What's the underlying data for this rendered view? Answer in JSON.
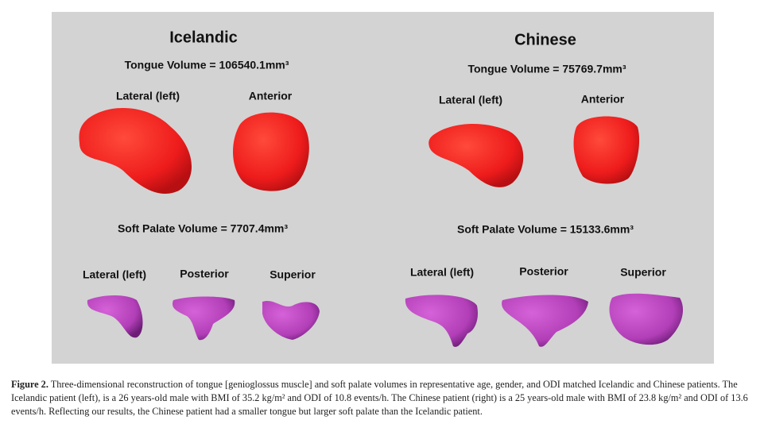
{
  "figure": {
    "panels": [
      {
        "title": "Icelandic",
        "tongue_volume": "Tongue Volume = 106540.1mm³",
        "tongue_views": [
          "Lateral (left)",
          "Anterior"
        ],
        "palate_volume": "Soft Palate Volume = 7707.4mm³",
        "palate_views": [
          "Lateral (left)",
          "Posterior",
          "Superior"
        ]
      },
      {
        "title": "Chinese",
        "tongue_volume": "Tongue Volume = 75769.7mm³",
        "tongue_views": [
          "Lateral (left)",
          "Anterior"
        ],
        "palate_volume": "Soft Palate Volume = 15133.6mm³",
        "palate_views": [
          "Lateral (left)",
          "Posterior",
          "Superior"
        ]
      }
    ],
    "caption": {
      "label": "Figure 2.",
      "text": "Three-dimensional reconstruction of tongue [genioglossus muscle] and soft palate volumes in representative age, gender, and ODI matched Icelandic and Chinese patients. The Icelandic patient (left), is a 26 years-old male with BMI of 35.2 kg/m² and ODI of 10.8 events/h. The Chinese patient (right) is a 25 years-old male with BMI of 23.8 kg/m² and ODI of 13.6 events/h. Reflecting our results, the Chinese patient had a smaller tongue but larger soft palate than the Icelandic patient."
    }
  }
}
